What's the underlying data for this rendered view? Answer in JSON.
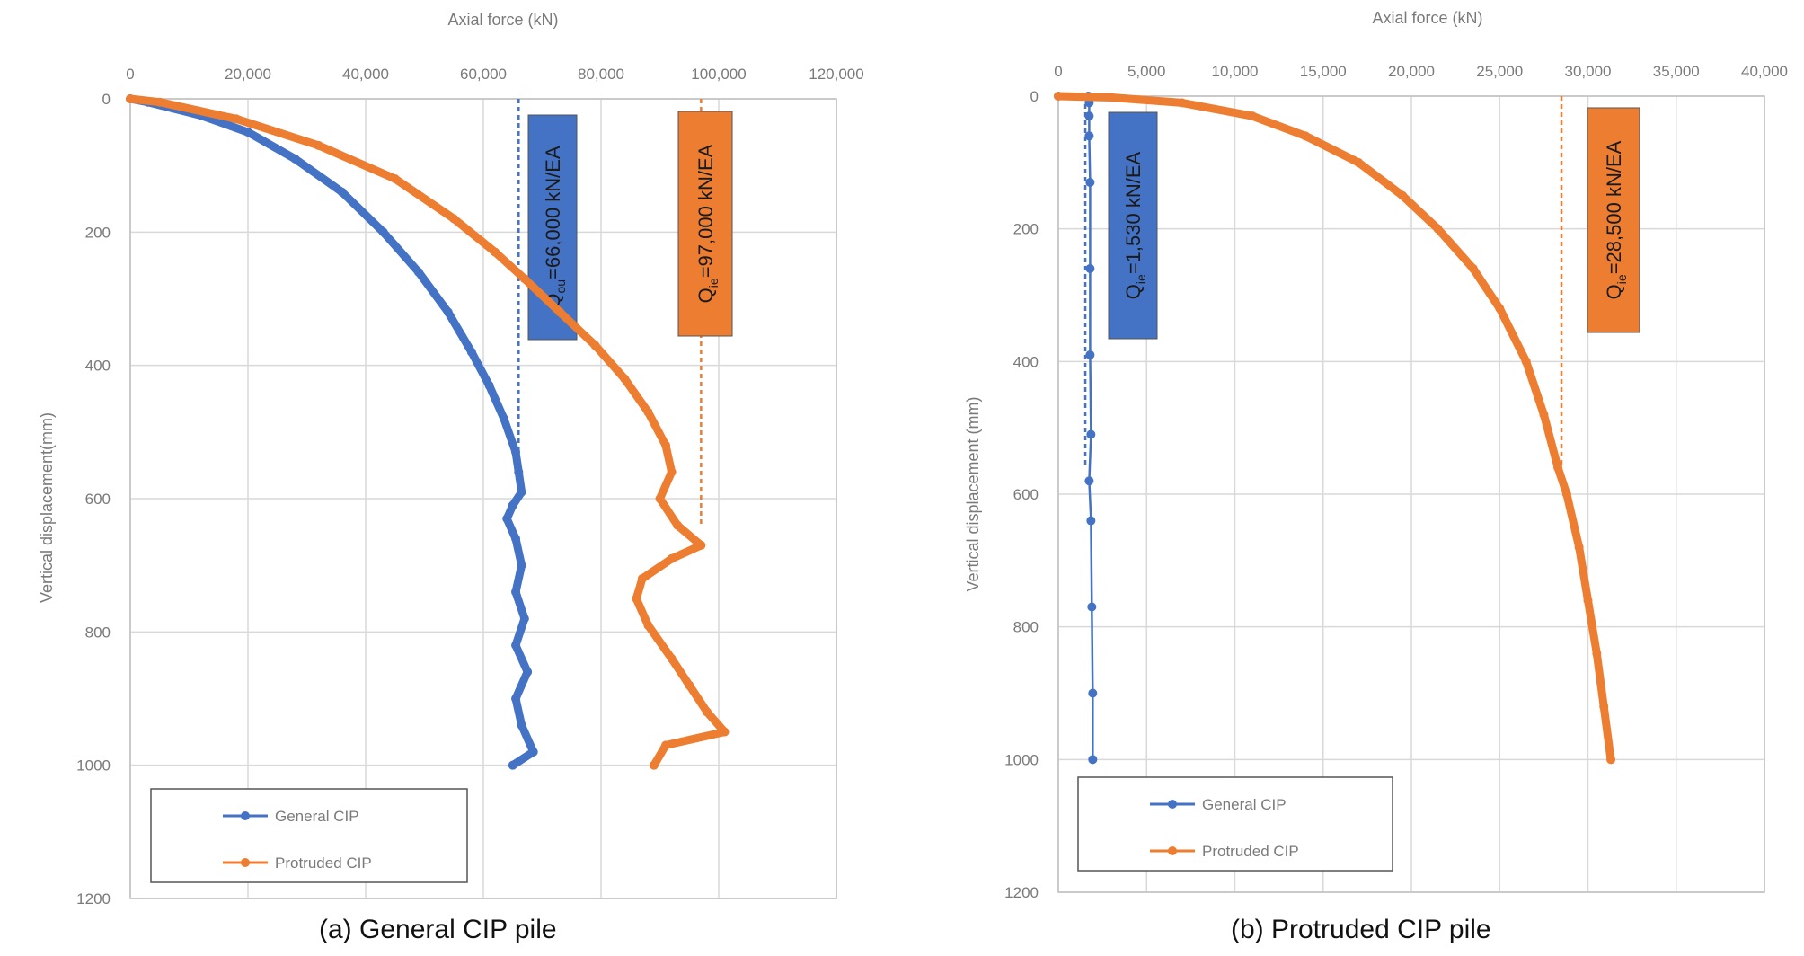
{
  "chart_data": [
    {
      "type": "line",
      "caption": "(a) General CIP pile",
      "xlabel": "Axial force (kN)",
      "ylabel": "Vertical displacement(mm)",
      "xlim": [
        0,
        120000
      ],
      "ylim": [
        0,
        1200
      ],
      "x_ticks": [
        "0",
        "20,000",
        "40,000",
        "60,000",
        "80,000",
        "100,000",
        "120,000"
      ],
      "y_ticks": [
        "0",
        "200",
        "400",
        "600",
        "800",
        "1000",
        "1200"
      ],
      "y_inverted": true,
      "x_axis_position": "top",
      "grid": true,
      "legend_position": "bottom-left",
      "series": [
        {
          "name": "General CIP",
          "color": "#4472C4",
          "points": [
            [
              0,
              0
            ],
            [
              3000,
              5
            ],
            [
              12000,
              25
            ],
            [
              20000,
              50
            ],
            [
              28000,
              90
            ],
            [
              36000,
              140
            ],
            [
              43000,
              200
            ],
            [
              49000,
              260
            ],
            [
              54000,
              320
            ],
            [
              58000,
              380
            ],
            [
              61000,
              430
            ],
            [
              63500,
              480
            ],
            [
              65500,
              530
            ],
            [
              66000,
              560
            ],
            [
              66500,
              590
            ],
            [
              65000,
              610
            ],
            [
              64000,
              630
            ],
            [
              65500,
              660
            ],
            [
              66500,
              700
            ],
            [
              65500,
              740
            ],
            [
              67000,
              780
            ],
            [
              65500,
              820
            ],
            [
              67500,
              860
            ],
            [
              65500,
              900
            ],
            [
              66500,
              940
            ],
            [
              68500,
              980
            ],
            [
              65000,
              1000
            ]
          ]
        },
        {
          "name": "Protruded CIP",
          "color": "#ED7D31",
          "points": [
            [
              0,
              0
            ],
            [
              5000,
              5
            ],
            [
              18000,
              30
            ],
            [
              32000,
              70
            ],
            [
              45000,
              120
            ],
            [
              55000,
              180
            ],
            [
              62000,
              230
            ],
            [
              67000,
              270
            ],
            [
              73000,
              320
            ],
            [
              79000,
              370
            ],
            [
              84000,
              420
            ],
            [
              88000,
              470
            ],
            [
              91000,
              520
            ],
            [
              92000,
              560
            ],
            [
              90000,
              600
            ],
            [
              93000,
              640
            ],
            [
              97000,
              670
            ],
            [
              92000,
              690
            ],
            [
              87000,
              720
            ],
            [
              86000,
              750
            ],
            [
              88000,
              790
            ],
            [
              92000,
              840
            ],
            [
              95000,
              880
            ],
            [
              98000,
              920
            ],
            [
              101000,
              950
            ],
            [
              91000,
              970
            ],
            [
              89000,
              1000
            ]
          ]
        }
      ],
      "annotations": [
        {
          "label": "Q",
          "subscript": "ou",
          "rest": "=66,000 kN/EA",
          "x": 66000,
          "color": "#4472C4"
        },
        {
          "label": "Q",
          "subscript": "ie",
          "rest": "=97,000 kN/EA",
          "x": 97000,
          "color": "#ED7D31"
        }
      ]
    },
    {
      "type": "line",
      "caption": "(b) Protruded CIP pile",
      "xlabel": "Axial force (kN)",
      "ylabel": "Vertical displacement (mm)",
      "xlim": [
        0,
        40000
      ],
      "ylim": [
        0,
        1200
      ],
      "x_ticks": [
        "0",
        "5,000",
        "10,000",
        "15,000",
        "20,000",
        "25,000",
        "30,000",
        "35,000",
        "40,000"
      ],
      "y_ticks": [
        "0",
        "200",
        "400",
        "600",
        "800",
        "1000",
        "1200"
      ],
      "y_inverted": true,
      "x_axis_position": "top",
      "grid": true,
      "legend_position": "bottom-left",
      "series": [
        {
          "name": "General CIP",
          "color": "#4472C4",
          "points": [
            [
              0,
              0
            ],
            [
              1700,
              0
            ],
            [
              1750,
              10
            ],
            [
              1750,
              30
            ],
            [
              1750,
              60
            ],
            [
              1800,
              130
            ],
            [
              1800,
              260
            ],
            [
              1800,
              390
            ],
            [
              1850,
              510
            ],
            [
              1750,
              580
            ],
            [
              1850,
              640
            ],
            [
              1900,
              770
            ],
            [
              1950,
              900
            ],
            [
              1950,
              1000
            ]
          ]
        },
        {
          "name": "Protruded CIP",
          "color": "#ED7D31",
          "points": [
            [
              0,
              0
            ],
            [
              3000,
              2
            ],
            [
              7000,
              10
            ],
            [
              11000,
              30
            ],
            [
              14000,
              60
            ],
            [
              17000,
              100
            ],
            [
              19500,
              150
            ],
            [
              21500,
              200
            ],
            [
              23500,
              260
            ],
            [
              25000,
              320
            ],
            [
              26500,
              400
            ],
            [
              27500,
              480
            ],
            [
              28300,
              560
            ],
            [
              28800,
              600
            ],
            [
              29500,
              680
            ],
            [
              30000,
              760
            ],
            [
              30500,
              840
            ],
            [
              30900,
              920
            ],
            [
              31300,
              1000
            ]
          ]
        }
      ],
      "annotations": [
        {
          "label": "Q",
          "subscript": "ie",
          "rest": "=1,530 kN/EA",
          "x": 1530,
          "color": "#4472C4"
        },
        {
          "label": "Q",
          "subscript": "ie",
          "rest": "=28,500 kN/EA",
          "x": 28500,
          "color": "#ED7D31"
        }
      ]
    }
  ]
}
